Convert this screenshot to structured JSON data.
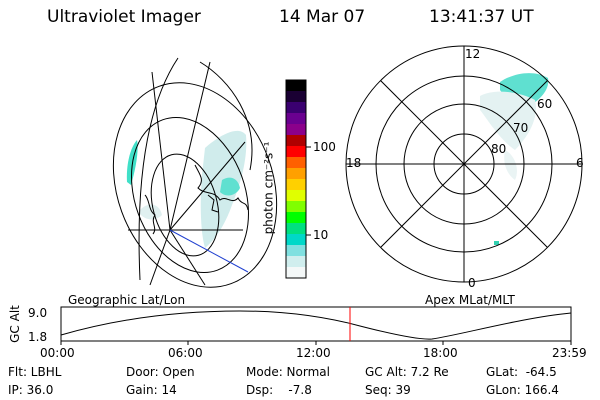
{
  "header": {
    "instrument": "Ultraviolet Imager",
    "date": "14 Mar 07",
    "time": "13:41:37 UT"
  },
  "colorbar": {
    "unit_label": "photon cm⁻²s⁻¹",
    "ticks": [
      "100",
      "10"
    ],
    "colors": [
      "#000000",
      "#1a0033",
      "#3a0070",
      "#6a0090",
      "#8b008b",
      "#b00000",
      "#ff0000",
      "#ff6000",
      "#ffa000",
      "#ffd000",
      "#e0ff00",
      "#80ff00",
      "#00ff00",
      "#00e080",
      "#00d8c8",
      "#80e0e0",
      "#d0eeee",
      "#f4f8f8"
    ]
  },
  "polar_plot": {
    "mlt_labels": {
      "top": "12",
      "left": "18",
      "right": "6",
      "bottom": "0"
    },
    "lat_labels": [
      "60",
      "70",
      "80"
    ]
  },
  "footer_plot": {
    "left_title": "Geographic Lat/Lon",
    "right_title": "Apex MLat/MLT",
    "y_label": "GC Alt",
    "y_max": "9.0",
    "y_min": "1.8",
    "x_ticks": [
      "00:00",
      "06:00",
      "12:00",
      "18:00",
      "23:59"
    ],
    "current_time_color": "#ff0000"
  },
  "status": {
    "flt": "Flt: LBHL",
    "ip": "IP: 36.0",
    "door": "Door: Open",
    "gain": "Gain: 14",
    "mode": "Mode: Normal",
    "dsp": "Dsp:    -7.8",
    "gcalt": "GC Alt: 7.2 Re",
    "seq": "Seq: 39",
    "glat": "GLat:  -64.5",
    "glon": "GLon: 166.4"
  }
}
